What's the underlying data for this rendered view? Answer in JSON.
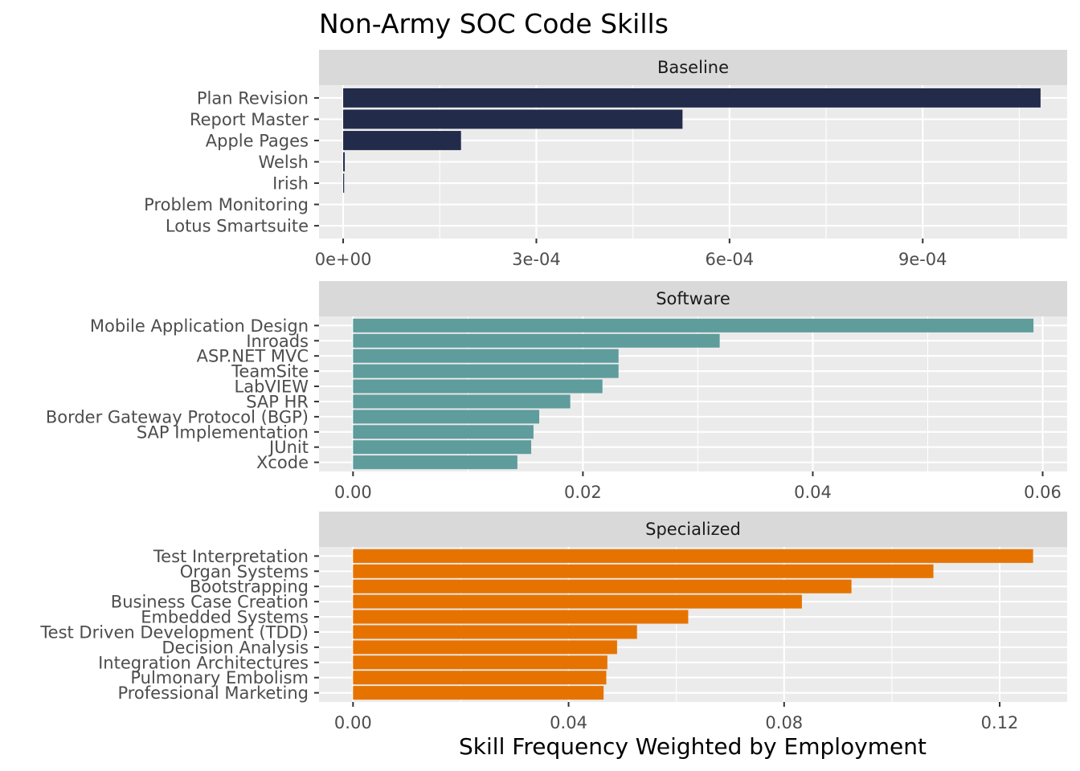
{
  "chart_data": {
    "type": "bar",
    "orientation": "horizontal",
    "title": "Non-Army SOC Code Skills",
    "xlabel": "Skill Frequency Weighted by Employment",
    "ylabel": "",
    "grid": true,
    "legend": "none",
    "panels": [
      {
        "strip": "Baseline",
        "color": "#232b4b",
        "xlim": [
          -3.75e-05,
          0.0011243
        ],
        "ticks": [
          0,
          0.0003,
          0.0006,
          0.0009
        ],
        "tick_labels": [
          "0e+00",
          "3e-04",
          "6e-04",
          "9e-04"
        ],
        "categories": [
          "Plan Revision",
          "Report Master",
          "Apple Pages",
          "Welsh",
          "Irish",
          "Problem Monitoring",
          "Lotus Smartsuite"
        ],
        "values": [
          0.001083,
          0.000527,
          0.000183,
          2.5e-06,
          1.5e-06,
          0.0,
          0.0
        ]
      },
      {
        "strip": "Software",
        "color": "#5f9c9c",
        "xlim": [
          -0.00296,
          0.06213
        ],
        "ticks": [
          0,
          0.02,
          0.04,
          0.06
        ],
        "tick_labels": [
          "0.00",
          "0.02",
          "0.04",
          "0.06"
        ],
        "categories": [
          "Mobile Application Design",
          "Inroads",
          "ASP.NET MVC",
          "TeamSite",
          "LabVIEW",
          "SAP HR",
          "Border Gateway Protocol (BGP)",
          "SAP Implementation",
          "JUnit",
          "Xcode"
        ],
        "values": [
          0.0592,
          0.0319,
          0.0231,
          0.0231,
          0.0217,
          0.0189,
          0.0162,
          0.0157,
          0.0155,
          0.0143
        ]
      },
      {
        "strip": "Specialized",
        "color": "#e67300",
        "xlim": [
          -0.00631,
          0.13252
        ],
        "ticks": [
          0,
          0.04,
          0.08,
          0.12
        ],
        "tick_labels": [
          "0.00",
          "0.04",
          "0.08",
          "0.12"
        ],
        "categories": [
          "Test Interpretation",
          "Organ Systems",
          "Bootstrapping",
          "Business Case Creation",
          "Embedded Systems",
          "Test Driven Development (TDD)",
          "Decision Analysis",
          "Integration Architectures",
          "Pulmonary Embolism",
          "Professional Marketing"
        ],
        "values": [
          0.1262,
          0.1077,
          0.0925,
          0.0833,
          0.0622,
          0.0527,
          0.049,
          0.0472,
          0.047,
          0.0465
        ]
      }
    ]
  }
}
